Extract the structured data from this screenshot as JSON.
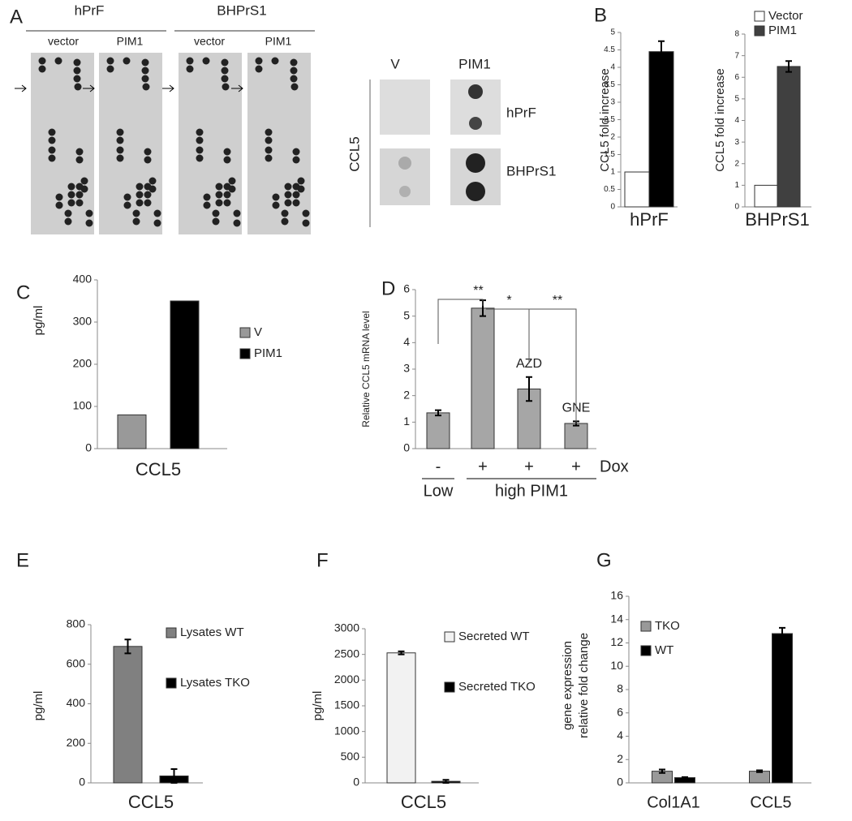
{
  "figure": {
    "panel_label": "A",
    "cell_lines": [
      "hPrF",
      "BHPrS1"
    ],
    "blot_headers": [
      "vector",
      "PIM1",
      "vector",
      "PIM1"
    ],
    "dot_blot": {
      "columns": [
        "V",
        "PIM1"
      ],
      "row_title": "CCL5",
      "rows": [
        "hPrF",
        "BHPrS1"
      ]
    }
  },
  "chart_data": [
    {
      "type": "bar",
      "panel_label": "B",
      "ylabel": "CCL5 fold increase",
      "categories": [
        "hPrF"
      ],
      "ylim": [
        0,
        5
      ],
      "yticks": [
        0,
        0.5,
        1,
        1.5,
        2,
        2.5,
        3,
        3.5,
        4,
        4.5,
        5
      ],
      "legend": false,
      "series": [
        {
          "color": "#ffffff",
          "values": [
            1
          ]
        },
        {
          "color": "#000000",
          "values": [
            4.45
          ],
          "errors": [
            0.3
          ]
        }
      ]
    },
    {
      "type": "bar",
      "ylabel": "CCL5 fold increase",
      "categories": [
        "BHPrS1"
      ],
      "ylim": [
        0,
        8
      ],
      "yticks": [
        0,
        1,
        2,
        3,
        4,
        5,
        6,
        7,
        8
      ],
      "legend": "top",
      "series": [
        {
          "name": "Vector",
          "color": "#ffffff",
          "values": [
            1
          ]
        },
        {
          "name": "PIM1",
          "color": "#404040",
          "values": [
            6.5
          ],
          "errors": [
            0.25
          ]
        }
      ]
    },
    {
      "type": "bar",
      "panel_label": "C",
      "ylabel": "pg/ml",
      "categories": [
        "CCL5"
      ],
      "ylim": [
        0,
        400
      ],
      "yticks": [
        0,
        100,
        200,
        300,
        400
      ],
      "legend": "right",
      "series": [
        {
          "name": "V",
          "color": "#999999",
          "values": [
            80
          ]
        },
        {
          "name": "PIM1",
          "color": "#000000",
          "values": [
            350
          ]
        }
      ]
    },
    {
      "type": "bar",
      "panel_label": "D",
      "ylabel": "Relative CCL5 mRNA level",
      "categories": [
        "-",
        "+",
        "+",
        "+"
      ],
      "xlabel": "Dox",
      "groups": [
        "Low",
        "high PIM1"
      ],
      "bar_labels": [
        null,
        null,
        "AZD",
        "GNE"
      ],
      "significance": [
        "**",
        "*",
        "**"
      ],
      "ylim": [
        0,
        6
      ],
      "yticks": [
        0,
        1,
        2,
        3,
        4,
        5,
        6
      ],
      "legend": false,
      "series": [
        {
          "color": "#a6a6a6",
          "values": [
            1.35,
            5.3,
            2.25,
            0.95
          ],
          "errors": [
            0.1,
            0.3,
            0.45,
            0.08
          ]
        }
      ]
    },
    {
      "type": "bar",
      "panel_label": "E",
      "ylabel": "pg/ml",
      "categories": [
        "CCL5"
      ],
      "ylim": [
        0,
        800
      ],
      "yticks": [
        0,
        200,
        400,
        600,
        800
      ],
      "legend": "right",
      "series": [
        {
          "name": "Lysates WT",
          "color": "#808080",
          "values": [
            690
          ],
          "errors": [
            35
          ]
        },
        {
          "name": "Lysates TKO",
          "color": "#000000",
          "values": [
            35
          ],
          "errors": [
            35
          ]
        }
      ]
    },
    {
      "type": "bar",
      "panel_label": "F",
      "ylabel": "pg/ml",
      "categories": [
        "CCL5"
      ],
      "ylim": [
        0,
        3000
      ],
      "yticks": [
        0,
        500,
        1000,
        1500,
        2000,
        2500,
        3000
      ],
      "legend": "right",
      "series": [
        {
          "name": "Secreted WT",
          "color": "#f2f2f2",
          "values": [
            2530
          ],
          "errors": [
            30
          ]
        },
        {
          "name": "Secreted TKO",
          "color": "#000000",
          "values": [
            30
          ],
          "errors": [
            30
          ]
        }
      ]
    },
    {
      "type": "bar",
      "panel_label": "G",
      "ylabel": [
        "gene expression",
        "relative fold change"
      ],
      "categories": [
        "Col1A1",
        "CCL5"
      ],
      "ylim": [
        0,
        16
      ],
      "yticks": [
        0,
        2,
        4,
        6,
        8,
        10,
        12,
        14,
        16
      ],
      "legend": "top-left",
      "series": [
        {
          "name": "TKO",
          "color": "#999999",
          "values": [
            1.0,
            1.0
          ],
          "errors": [
            0.15,
            0.08
          ]
        },
        {
          "name": "WT",
          "color": "#000000",
          "values": [
            0.45,
            12.8
          ],
          "errors": [
            0.05,
            0.5
          ]
        }
      ]
    }
  ]
}
